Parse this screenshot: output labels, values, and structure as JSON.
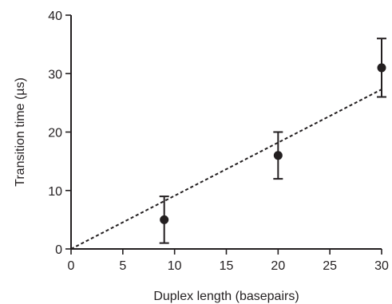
{
  "chart_data": {
    "type": "scatter",
    "xlabel": "Duplex length (basepairs)",
    "ylabel": "Transition time (µs)",
    "xlim": [
      0,
      30
    ],
    "ylim": [
      0,
      40
    ],
    "x_ticks": [
      0,
      5,
      10,
      15,
      20,
      25,
      30
    ],
    "y_ticks": [
      0,
      10,
      20,
      30,
      40
    ],
    "grid": false,
    "series": [
      {
        "x": [
          9,
          20,
          30
        ],
        "y": [
          5,
          16,
          31
        ],
        "error_low": [
          1,
          12,
          26
        ],
        "error_high": [
          9,
          20,
          36
        ]
      }
    ],
    "fit_line": {
      "x": [
        0,
        30
      ],
      "y": [
        0,
        27.3
      ]
    },
    "colors": {
      "ink": "#231f20"
    }
  }
}
